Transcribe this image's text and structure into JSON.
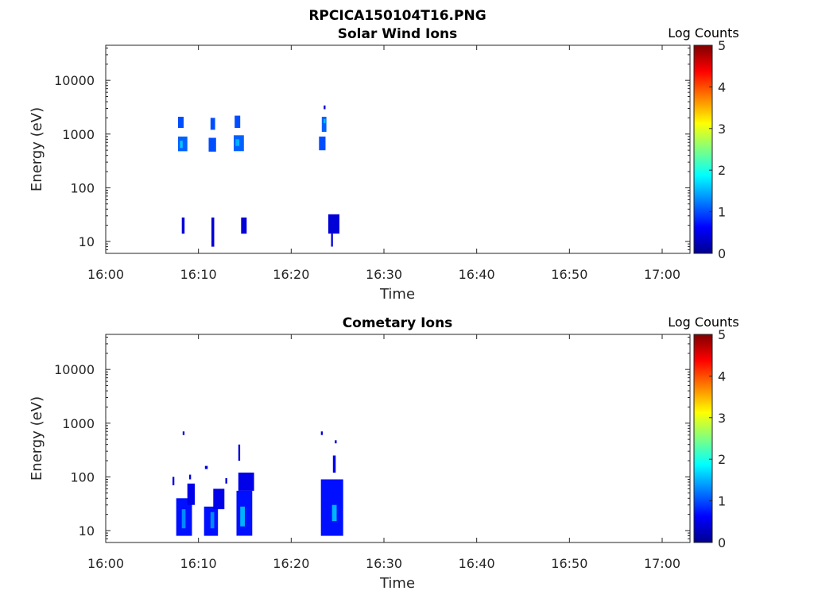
{
  "figure": {
    "title": "RPCICA150104T16.PNG"
  },
  "colors": {
    "axis": "#262626",
    "background": "#ffffff"
  },
  "chart_data": [
    {
      "type": "heatmap",
      "title": "Solar Wind Ions",
      "xlabel": "Time",
      "ylabel": "Energy (eV)",
      "colorbar_label": "Log Counts",
      "colormap": "jet",
      "colorbar_ticks": [
        "0",
        "1",
        "2",
        "3",
        "4",
        "5"
      ],
      "clim": [
        0,
        5
      ],
      "x_ticks": [
        "16:00",
        "16:10",
        "16:20",
        "16:30",
        "16:40",
        "16:50",
        "17:00"
      ],
      "xlim": [
        "16:00",
        "17:03"
      ],
      "y_scale": "log",
      "y_ticks": [
        "10",
        "100",
        "1000",
        "10000"
      ],
      "ylim": [
        6,
        45000
      ],
      "grid": false,
      "cells": [
        {
          "time": [
            "16:07.8",
            "16:08.4"
          ],
          "energy": [
            1300,
            2100
          ],
          "value": 1.0
        },
        {
          "time": [
            "16:07.8",
            "16:08.8"
          ],
          "energy": [
            480,
            900
          ],
          "value": 1.1
        },
        {
          "time": [
            "16:08.0",
            "16:08.3"
          ],
          "energy": [
            550,
            750
          ],
          "value": 1.6
        },
        {
          "time": [
            "16:08.2",
            "16:08.5"
          ],
          "energy": [
            14,
            28
          ],
          "value": 0.4
        },
        {
          "time": [
            "16:11.3",
            "16:11.8"
          ],
          "energy": [
            1200,
            2000
          ],
          "value": 1.0
        },
        {
          "time": [
            "16:11.1",
            "16:11.9"
          ],
          "energy": [
            470,
            850
          ],
          "value": 1.0
        },
        {
          "time": [
            "16:11.4",
            "16:11.7"
          ],
          "energy": [
            8,
            28
          ],
          "value": 0.4
        },
        {
          "time": [
            "16:13.9",
            "16:14.5"
          ],
          "energy": [
            1300,
            2200
          ],
          "value": 1.0
        },
        {
          "time": [
            "16:13.8",
            "16:14.9"
          ],
          "energy": [
            480,
            950
          ],
          "value": 1.1
        },
        {
          "time": [
            "16:14.0",
            "16:14.4"
          ],
          "energy": [
            600,
            800
          ],
          "value": 1.5
        },
        {
          "time": [
            "16:14.6",
            "16:15.2"
          ],
          "energy": [
            14,
            28
          ],
          "value": 0.4
        },
        {
          "time": [
            "16:23.0",
            "16:23.7"
          ],
          "energy": [
            500,
            900
          ],
          "value": 1.0
        },
        {
          "time": [
            "16:23.3",
            "16:23.8"
          ],
          "energy": [
            1100,
            2100
          ],
          "value": 1.1
        },
        {
          "time": [
            "16:23.5",
            "16:23.7"
          ],
          "energy": [
            1600,
            1900
          ],
          "value": 1.6
        },
        {
          "time": [
            "16:23.5",
            "16:23.7"
          ],
          "energy": [
            2900,
            3400
          ],
          "value": 0.4
        },
        {
          "time": [
            "16:24.0",
            "16:25.2"
          ],
          "energy": [
            14,
            32
          ],
          "value": 0.4
        },
        {
          "time": [
            "16:24.3",
            "16:24.5"
          ],
          "energy": [
            8,
            14
          ],
          "value": 0.4
        }
      ]
    },
    {
      "type": "heatmap",
      "title": "Cometary Ions",
      "xlabel": "Time",
      "ylabel": "Energy (eV)",
      "colorbar_label": "Log Counts",
      "colormap": "jet",
      "colorbar_ticks": [
        "0",
        "1",
        "2",
        "3",
        "4",
        "5"
      ],
      "clim": [
        0,
        5
      ],
      "x_ticks": [
        "16:00",
        "16:10",
        "16:20",
        "16:30",
        "16:40",
        "16:50",
        "17:00"
      ],
      "xlim": [
        "16:00",
        "17:03"
      ],
      "y_scale": "log",
      "y_ticks": [
        "10",
        "100",
        "1000",
        "10000"
      ],
      "ylim": [
        6,
        45000
      ],
      "grid": false,
      "cells": [
        {
          "time": [
            "16:08.3",
            "16:08.5"
          ],
          "energy": [
            600,
            700
          ],
          "value": 0.4
        },
        {
          "time": [
            "16:07.2",
            "16:07.4"
          ],
          "energy": [
            70,
            100
          ],
          "value": 0.4
        },
        {
          "time": [
            "16:07.6",
            "16:09.3"
          ],
          "energy": [
            8,
            40
          ],
          "value": 0.7
        },
        {
          "time": [
            "16:08.2",
            "16:08.6"
          ],
          "energy": [
            11,
            25
          ],
          "value": 1.3
        },
        {
          "time": [
            "16:08.8",
            "16:09.6"
          ],
          "energy": [
            30,
            75
          ],
          "value": 0.5
        },
        {
          "time": [
            "16:09.0",
            "16:09.2"
          ],
          "energy": [
            90,
            110
          ],
          "value": 0.4
        },
        {
          "time": [
            "16:10.7",
            "16:11.0"
          ],
          "energy": [
            140,
            160
          ],
          "value": 0.4
        },
        {
          "time": [
            "16:10.6",
            "16:12.1"
          ],
          "energy": [
            8,
            28
          ],
          "value": 0.7
        },
        {
          "time": [
            "16:11.3",
            "16:11.7"
          ],
          "energy": [
            11,
            22
          ],
          "value": 1.3
        },
        {
          "time": [
            "16:11.6",
            "16:12.8"
          ],
          "energy": [
            25,
            60
          ],
          "value": 0.5
        },
        {
          "time": [
            "16:12.9",
            "16:13.1"
          ],
          "energy": [
            75,
            95
          ],
          "value": 0.4
        },
        {
          "time": [
            "16:14.1",
            "16:15.8"
          ],
          "energy": [
            8,
            55
          ],
          "value": 0.7
        },
        {
          "time": [
            "16:14.5",
            "16:15.0"
          ],
          "energy": [
            12,
            28
          ],
          "value": 1.5
        },
        {
          "time": [
            "16:14.3",
            "16:16.0"
          ],
          "energy": [
            55,
            120
          ],
          "value": 0.5
        },
        {
          "time": [
            "16:14.3",
            "16:14.5"
          ],
          "energy": [
            200,
            400
          ],
          "value": 0.4
        },
        {
          "time": [
            "16:23.2",
            "16:23.4"
          ],
          "energy": [
            600,
            700
          ],
          "value": 0.4
        },
        {
          "time": [
            "16:23.2",
            "16:25.6"
          ],
          "energy": [
            8,
            90
          ],
          "value": 0.7
        },
        {
          "time": [
            "16:24.4",
            "16:24.9"
          ],
          "energy": [
            15,
            30
          ],
          "value": 1.5
        },
        {
          "time": [
            "16:24.5",
            "16:24.8"
          ],
          "energy": [
            120,
            250
          ],
          "value": 0.5
        },
        {
          "time": [
            "16:24.7",
            "16:24.9"
          ],
          "energy": [
            420,
            480
          ],
          "value": 0.4
        }
      ]
    }
  ]
}
